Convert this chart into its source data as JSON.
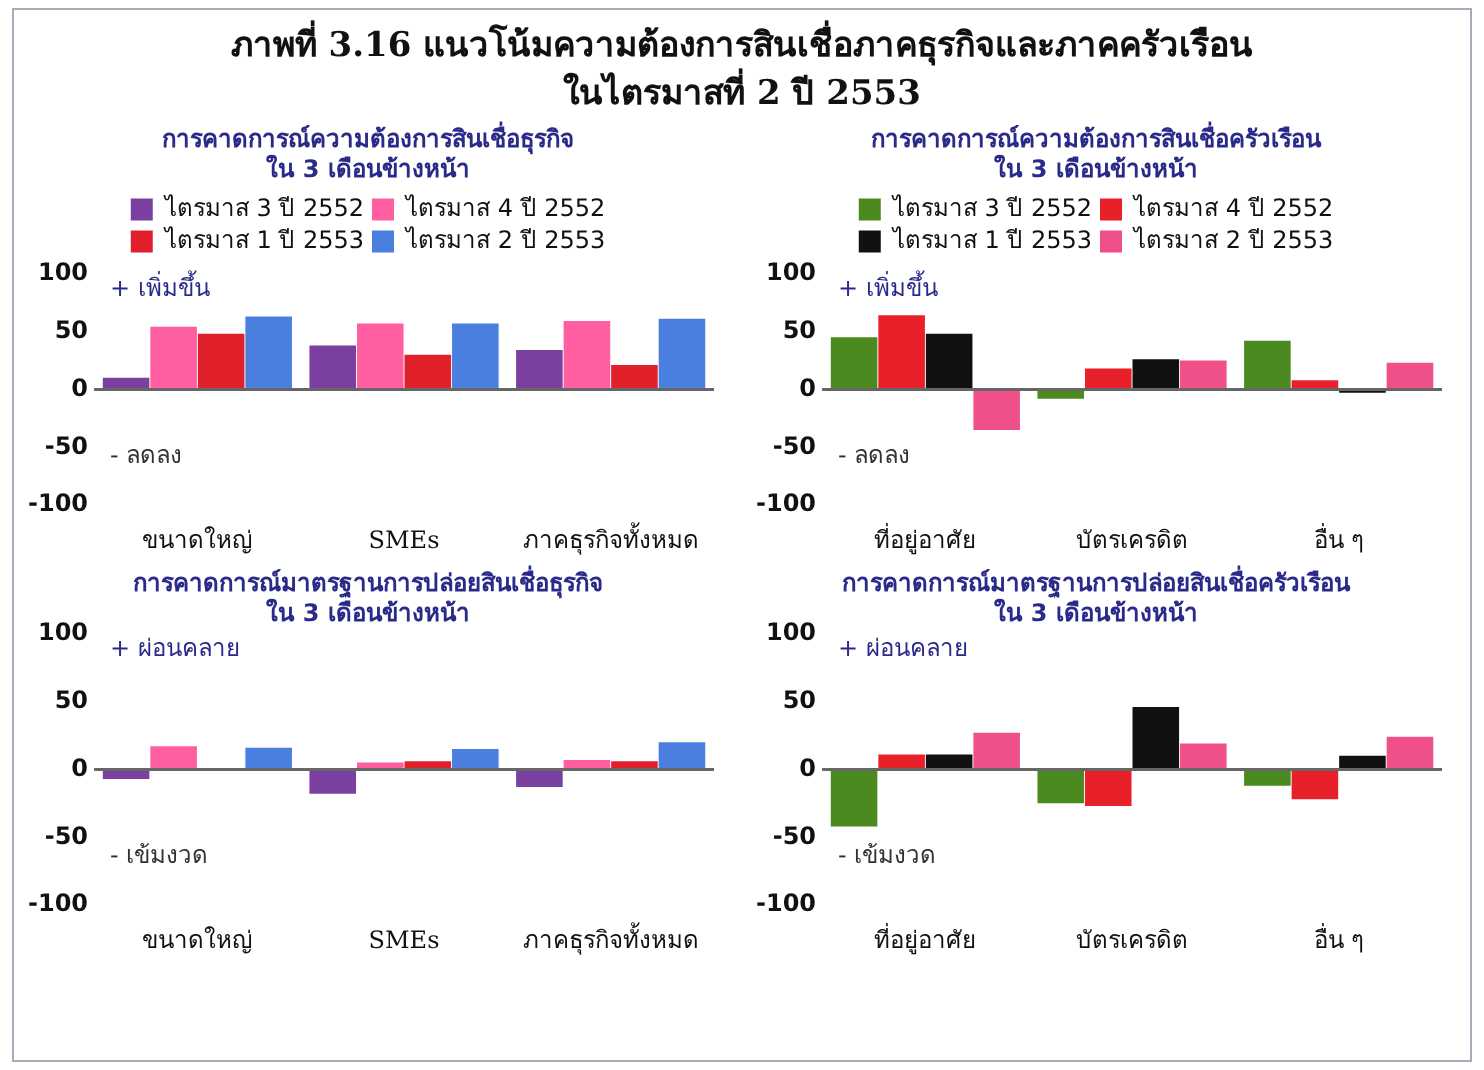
{
  "chart_data": [
    {
      "type": "bar",
      "title": "การคาดการณ์ความต้องการสินเชื่อธุรกิจ",
      "subtitle": "ใน 3 เดือนข้างหน้า",
      "categories": [
        "ขนาดใหญ่",
        "SMEs",
        "ภาคธุรกิจทั้งหมด"
      ],
      "series": [
        {
          "name": "ไตรมาส 3 ปี 2552",
          "color": "#7b3fa0",
          "values": [
            10,
            38,
            34
          ]
        },
        {
          "name": "ไตรมาส 4 ปี 2552",
          "color": "#ff5fa0",
          "values": [
            54,
            57,
            59
          ]
        },
        {
          "name": "ไตรมาส 1 ปี 2553",
          "color": "#e0202a",
          "values": [
            48,
            30,
            21
          ]
        },
        {
          "name": "ไตรมาส 2 ปี 2553",
          "color": "#4a7fe0",
          "values": [
            63,
            57,
            61
          ]
        }
      ],
      "ylim": [
        -100,
        100
      ],
      "yticks": [
        -100,
        -50,
        0,
        50,
        100
      ],
      "grid": false,
      "ref_lines": [
        {
          "axis": "y",
          "value": 0,
          "color": "#666666"
        }
      ],
      "legend": "top",
      "annotations": [
        "ภาพที่ 3.16  แนวโน้มความต้องการสินเชื่อภาคธุรกิจและภาคครัวเรือน",
        "ในไตรมาสที่ 2 ปี 2553",
        "+ เพิ่มขึ้น",
        "- ลดลง"
      ]
    },
    {
      "type": "bar",
      "title": "การคาดการณ์ความต้องการสินเชื่อครัวเรือน",
      "subtitle": "ใน 3 เดือนข้างหน้า",
      "categories": [
        "ที่อยู่อาศัย",
        "บัตรเครดิต",
        "อื่น ๆ"
      ],
      "series": [
        {
          "name": "ไตรมาส 3 ปี 2552",
          "color": "#4a8a1e",
          "values": [
            45,
            -8,
            42
          ]
        },
        {
          "name": "ไตรมาส 4 ปี 2552",
          "color": "#e8202a",
          "values": [
            64,
            18,
            8
          ]
        },
        {
          "name": "ไตรมาส 1 ปี 2553",
          "color": "#111111",
          "values": [
            48,
            26,
            -3
          ]
        },
        {
          "name": "ไตรมาส 2 ปี 2553",
          "color": "#f0508a",
          "values": [
            -35,
            25,
            23
          ]
        }
      ],
      "ylim": [
        -100,
        100
      ],
      "yticks": [
        -100,
        -50,
        0,
        50,
        100
      ],
      "grid": false,
      "ref_lines": [
        {
          "axis": "y",
          "value": 0,
          "color": "#666666"
        }
      ],
      "legend": "top",
      "annotations": [
        "+ เพิ่มขึ้น",
        "- ลดลง"
      ]
    },
    {
      "type": "bar",
      "title": "การคาดการณ์มาตรฐานการปล่อยสินเชื่อธุรกิจ",
      "subtitle": "ใน 3 เดือนข้างหน้า",
      "categories": [
        "ขนาดใหญ่",
        "SMEs",
        "ภาคธุรกิจทั้งหมด"
      ],
      "series": [
        {
          "color": "#7b3fa0",
          "values": [
            -7,
            -18,
            -13
          ]
        },
        {
          "color": "#ff5fa0",
          "values": [
            17,
            5,
            7
          ]
        },
        {
          "color": "#e0202a",
          "values": [
            0,
            6,
            6
          ]
        },
        {
          "color": "#4a7fe0",
          "values": [
            16,
            15,
            20
          ]
        }
      ],
      "ylim": [
        -100,
        100
      ],
      "yticks": [
        -100,
        -50,
        0,
        50,
        100
      ],
      "grid": false,
      "ref_lines": [
        {
          "axis": "y",
          "value": 0,
          "color": "#666666"
        }
      ],
      "annotations": [
        "+ ผ่อนคลาย",
        "- เข้มงวด"
      ]
    },
    {
      "type": "bar",
      "title": "การคาดการณ์มาตรฐานการปล่อยสินเชื่อครัวเรือน",
      "subtitle": "ใน 3 เดือนข้างหน้า",
      "categories": [
        "ที่อยู่อาศัย",
        "บัตรเครดิต",
        "อื่น ๆ"
      ],
      "series": [
        {
          "color": "#4a8a1e",
          "values": [
            -42,
            -25,
            -12
          ]
        },
        {
          "color": "#e8202a",
          "values": [
            11,
            -27,
            -22
          ]
        },
        {
          "color": "#111111",
          "values": [
            11,
            46,
            10
          ]
        },
        {
          "color": "#f0508a",
          "values": [
            27,
            19,
            24
          ]
        }
      ],
      "ylim": [
        -100,
        100
      ],
      "yticks": [
        -100,
        -50,
        0,
        50,
        100
      ],
      "grid": false,
      "ref_lines": [
        {
          "axis": "y",
          "value": 0,
          "color": "#666666"
        }
      ],
      "annotations": [
        "+ ผ่อนคลาย",
        "- เข้มงวด"
      ]
    }
  ]
}
